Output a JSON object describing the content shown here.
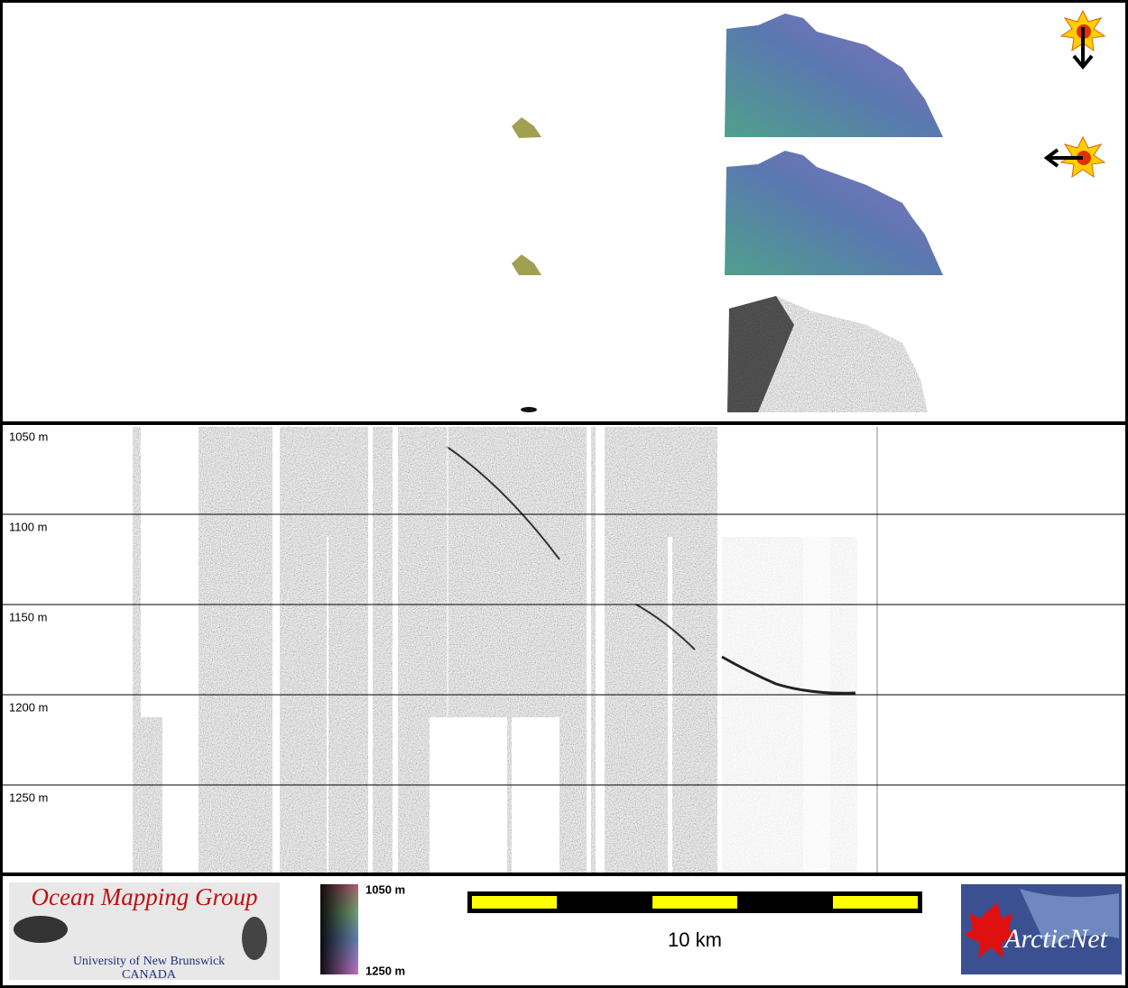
{
  "depth_axis": {
    "ticks": [
      {
        "value": 1050,
        "label": "1050 m"
      },
      {
        "value": 1100,
        "label": "1100 m"
      },
      {
        "value": 1150,
        "label": "1150 m"
      },
      {
        "value": 1200,
        "label": "1200 m"
      },
      {
        "value": 1250,
        "label": "1250 m"
      }
    ]
  },
  "logo": {
    "title": "Ocean Mapping Group",
    "line1": "University of New Brunswick",
    "line2": "CANADA"
  },
  "colorbar": {
    "top": "1050 m",
    "bottom": "1250 m"
  },
  "scale_bar": {
    "label": "10 km"
  },
  "partner_logo": {
    "label": "ArcticNet"
  }
}
